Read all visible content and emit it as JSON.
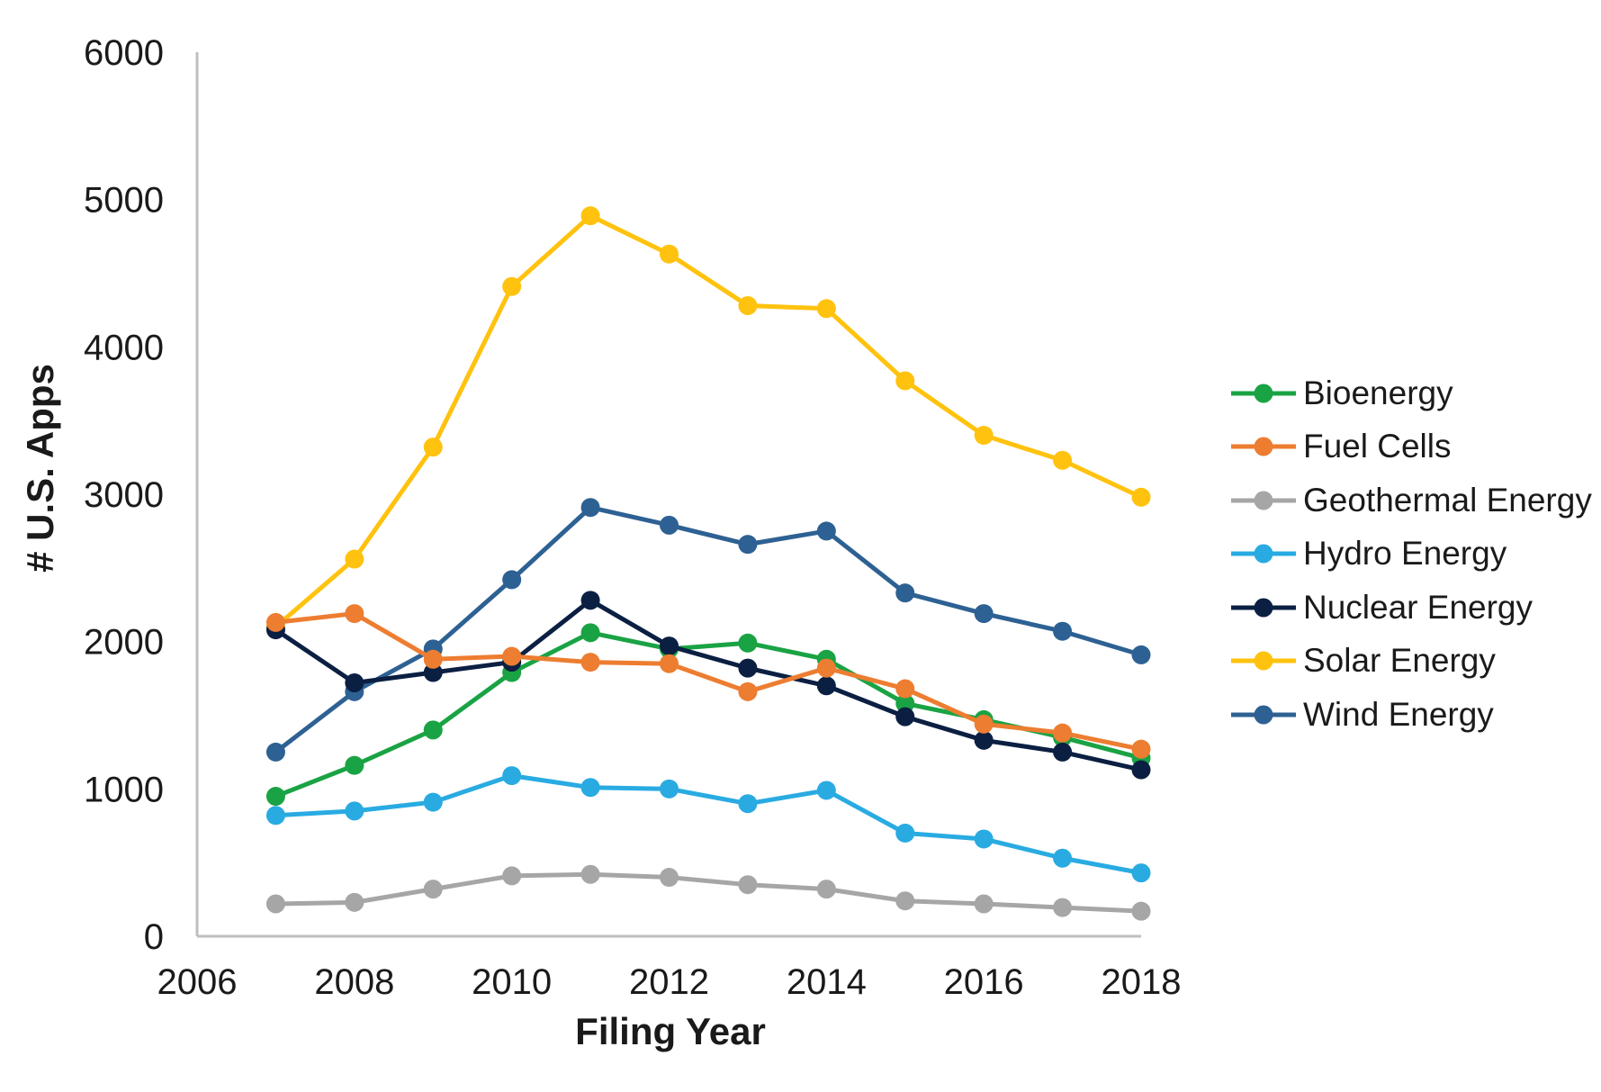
{
  "chart_data": {
    "type": "line",
    "title": "",
    "xlabel": "Filing Year",
    "ylabel": "# U.S. Apps",
    "x": [
      2007,
      2008,
      2009,
      2010,
      2011,
      2012,
      2013,
      2014,
      2015,
      2016,
      2017,
      2018
    ],
    "series": [
      {
        "name": "Bioenergy",
        "color": "#1AA344",
        "values": [
          950,
          1160,
          1400,
          1790,
          2060,
          1950,
          1990,
          1880,
          1580,
          1470,
          1350,
          1210
        ]
      },
      {
        "name": "Fuel Cells",
        "color": "#ED7D31",
        "values": [
          2130,
          2190,
          1880,
          1900,
          1860,
          1850,
          1660,
          1820,
          1680,
          1440,
          1380,
          1270
        ]
      },
      {
        "name": "Geothermal Energy",
        "color": "#A6A6A6",
        "values": [
          220,
          230,
          320,
          410,
          420,
          400,
          350,
          320,
          240,
          220,
          195,
          170
        ]
      },
      {
        "name": "Hydro Energy",
        "color": "#29ABE2",
        "values": [
          820,
          850,
          910,
          1090,
          1010,
          1000,
          900,
          990,
          700,
          660,
          530,
          430
        ]
      },
      {
        "name": "Nuclear Energy",
        "color": "#0B1F42",
        "values": [
          2080,
          1720,
          1790,
          1860,
          2280,
          1970,
          1820,
          1700,
          1490,
          1330,
          1250,
          1130
        ]
      },
      {
        "name": "Solar Energy",
        "color": "#FFC20E",
        "values": [
          2100,
          2560,
          3320,
          4410,
          4890,
          4630,
          4280,
          4260,
          3770,
          3400,
          3230,
          2980
        ]
      },
      {
        "name": "Wind Energy",
        "color": "#2E6193",
        "values": [
          1250,
          1660,
          1950,
          2420,
          2910,
          2790,
          2660,
          2750,
          2330,
          2190,
          2070,
          1910
        ]
      }
    ],
    "xlim": [
      2006,
      2018
    ],
    "ylim": [
      0,
      6000
    ],
    "xticks": [
      2006,
      2008,
      2010,
      2012,
      2014,
      2016,
      2018
    ],
    "yticks": [
      0,
      1000,
      2000,
      3000,
      4000,
      5000,
      6000
    ],
    "grid": false,
    "legend_position": "right",
    "axis_color": "#BFBFBF",
    "tick_label_color": "#1a1a1a"
  }
}
